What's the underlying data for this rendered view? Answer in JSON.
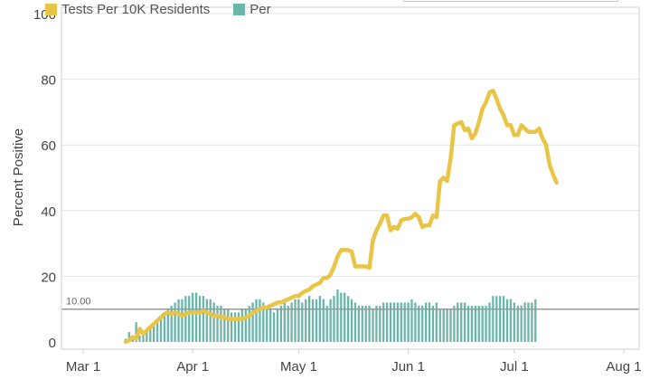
{
  "legend": {
    "items": [
      {
        "label": "Tests Per 10K Residents",
        "color": "#e8c547"
      },
      {
        "label": "Per",
        "color": "#6bb5aa"
      }
    ]
  },
  "colors": {
    "line": "#e8c547",
    "bars": "#6bb5aa",
    "threshold": "#999999",
    "grid": "#e6e6e6"
  },
  "chart_data": {
    "type": "line",
    "ylabel": "Percent Positive",
    "ylim": [
      0,
      100
    ],
    "yticks": [
      0,
      20,
      40,
      60,
      80,
      100
    ],
    "xlim": [
      0,
      157
    ],
    "xtick_labels": [
      {
        "label": "Mar 1",
        "x": 0
      },
      {
        "label": "Apr 1",
        "x": 31
      },
      {
        "label": "May 1",
        "x": 61
      },
      {
        "label": "Jun 1",
        "x": 92
      },
      {
        "label": "Jul 1",
        "x": 122
      },
      {
        "label": "Aug 1",
        "x": 153
      }
    ],
    "threshold": {
      "value": 10.0,
      "label": "10.00"
    },
    "series": [
      {
        "name": "Tests Per 10K Residents",
        "kind": "line",
        "points": [
          [
            12,
            0
          ],
          [
            13,
            0.5
          ],
          [
            14,
            1.5
          ],
          [
            15,
            1
          ],
          [
            16,
            4
          ],
          [
            17,
            2.5
          ],
          [
            18,
            3.5
          ],
          [
            19,
            4.5
          ],
          [
            20,
            5.5
          ],
          [
            21,
            6.5
          ],
          [
            22,
            7.5
          ],
          [
            23,
            8.5
          ],
          [
            24,
            9
          ],
          [
            25,
            8.5
          ],
          [
            26,
            9
          ],
          [
            27,
            8.5
          ],
          [
            28,
            8
          ],
          [
            29,
            8.5
          ],
          [
            30,
            9
          ],
          [
            31,
            9
          ],
          [
            32,
            9
          ],
          [
            33,
            9
          ],
          [
            34,
            9.5
          ],
          [
            35,
            9
          ],
          [
            36,
            8.5
          ],
          [
            37,
            8
          ],
          [
            38,
            8
          ],
          [
            39,
            7.5
          ],
          [
            40,
            7.5
          ],
          [
            41,
            7
          ],
          [
            42,
            7
          ],
          [
            43,
            7
          ],
          [
            44,
            7
          ],
          [
            45,
            7
          ],
          [
            46,
            7.5
          ],
          [
            47,
            8
          ],
          [
            48,
            9
          ],
          [
            49,
            9.5
          ],
          [
            50,
            10
          ],
          [
            51,
            10.5
          ],
          [
            52,
            10.5
          ],
          [
            53,
            11
          ],
          [
            54,
            11.5
          ],
          [
            55,
            12
          ],
          [
            56,
            12
          ],
          [
            57,
            12.5
          ],
          [
            58,
            13
          ],
          [
            59,
            13.5
          ],
          [
            60,
            14
          ],
          [
            61,
            14
          ],
          [
            62,
            15
          ],
          [
            63,
            15.5
          ],
          [
            64,
            16
          ],
          [
            65,
            17
          ],
          [
            66,
            17.5
          ],
          [
            67,
            18
          ],
          [
            68,
            19.5
          ],
          [
            69,
            19.5
          ],
          [
            70,
            20.5
          ],
          [
            71,
            23
          ],
          [
            72,
            26
          ],
          [
            73,
            28
          ],
          [
            74,
            28
          ],
          [
            75,
            28
          ],
          [
            76,
            27.5
          ],
          [
            77,
            23
          ],
          [
            78,
            23
          ],
          [
            79,
            23
          ],
          [
            80,
            23
          ],
          [
            81,
            22.5
          ],
          [
            82,
            31
          ],
          [
            83,
            34
          ],
          [
            84,
            36
          ],
          [
            85,
            38.5
          ],
          [
            86,
            38.5
          ],
          [
            87,
            34
          ],
          [
            88,
            35
          ],
          [
            89,
            34.5
          ],
          [
            90,
            37
          ],
          [
            91,
            37.5
          ],
          [
            92,
            37.5
          ],
          [
            93,
            38
          ],
          [
            94,
            39
          ],
          [
            95,
            38
          ],
          [
            96,
            35
          ],
          [
            97,
            35.5
          ],
          [
            98,
            35.5
          ],
          [
            99,
            38.5
          ],
          [
            100,
            38
          ],
          [
            101,
            49
          ],
          [
            102,
            50
          ],
          [
            103,
            49
          ],
          [
            104,
            56
          ],
          [
            105,
            66
          ],
          [
            106,
            66.5
          ],
          [
            107,
            67
          ],
          [
            108,
            64.5
          ],
          [
            109,
            65
          ],
          [
            110,
            62
          ],
          [
            111,
            63.5
          ],
          [
            112,
            67
          ],
          [
            113,
            71
          ],
          [
            114,
            73
          ],
          [
            115,
            76
          ],
          [
            116,
            76.5
          ],
          [
            117,
            74
          ],
          [
            118,
            71
          ],
          [
            119,
            69
          ],
          [
            120,
            66
          ],
          [
            121,
            66
          ],
          [
            122,
            63
          ],
          [
            123,
            63
          ],
          [
            124,
            66
          ],
          [
            125,
            65
          ],
          [
            126,
            64
          ],
          [
            127,
            64
          ],
          [
            128,
            64
          ],
          [
            129,
            65
          ],
          [
            130,
            62
          ],
          [
            131,
            60
          ],
          [
            132,
            54
          ],
          [
            133,
            51
          ],
          [
            134,
            48.5
          ]
        ]
      },
      {
        "name": "Per",
        "kind": "bar",
        "start": 12,
        "values": [
          1,
          3,
          1,
          6,
          2,
          3,
          4,
          5,
          6,
          7,
          8,
          9,
          10,
          11,
          12,
          13,
          13,
          14,
          14,
          15,
          15,
          14,
          14,
          13,
          13,
          12,
          11,
          11,
          10,
          10,
          9,
          9,
          9,
          10,
          10,
          11,
          12,
          13,
          13,
          12,
          11,
          10,
          9,
          10,
          11,
          12,
          11,
          12,
          13,
          13,
          12,
          13,
          14,
          13,
          13,
          14,
          13,
          11,
          13,
          14,
          16,
          15,
          15,
          14,
          13,
          12,
          11,
          11,
          11,
          11,
          10,
          11,
          11,
          12,
          12,
          12,
          12,
          12,
          12,
          12,
          12,
          13,
          12,
          11,
          11,
          12,
          12,
          11,
          12,
          10,
          10,
          10,
          10,
          11,
          12,
          12,
          12,
          11,
          11,
          11,
          11,
          11,
          11,
          12,
          14,
          14,
          14,
          14,
          13,
          13,
          12,
          11,
          11,
          12,
          12,
          12,
          13
        ]
      }
    ]
  }
}
